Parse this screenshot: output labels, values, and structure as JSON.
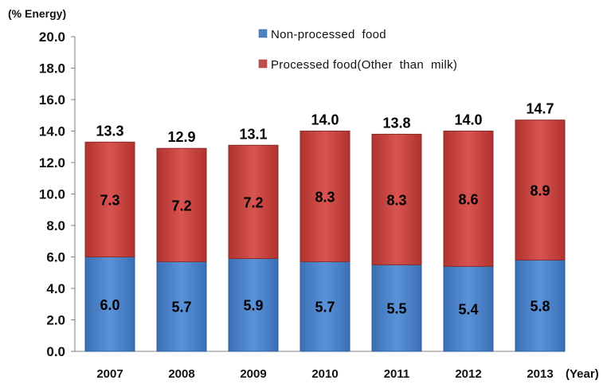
{
  "chart_data": {
    "type": "bar",
    "stacked": true,
    "categories": [
      "2007",
      "2008",
      "2009",
      "2010",
      "2011",
      "2012",
      "2013"
    ],
    "series": [
      {
        "name": "Non-processed  food",
        "color": "#4f81bd",
        "values": [
          6.0,
          5.7,
          5.9,
          5.7,
          5.5,
          5.4,
          5.8
        ],
        "labels": [
          "6.0",
          "5.7",
          "5.9",
          "5.7",
          "5.5",
          "5.4",
          "5.8"
        ]
      },
      {
        "name": "Processed food(Other  than  milk)",
        "color": "#c0504d",
        "values": [
          7.3,
          7.2,
          7.2,
          8.3,
          8.3,
          8.6,
          8.9
        ],
        "labels": [
          "7.3",
          "7.2",
          "7.2",
          "8.3",
          "8.3",
          "8.6",
          "8.9"
        ]
      }
    ],
    "totals": [
      "13.3",
      "12.9",
      "13.1",
      "14.0",
      "13.8",
      "14.0",
      "14.7"
    ],
    "ylabel": "(% Energy)",
    "xlabel": "(Year)",
    "ylim": [
      0,
      20
    ],
    "yticks": [
      "0.0",
      "2.0",
      "4.0",
      "6.0",
      "8.0",
      "10.0",
      "12.0",
      "14.0",
      "16.0",
      "18.0",
      "20.0"
    ],
    "grid": false,
    "legend_position": "top-center"
  }
}
